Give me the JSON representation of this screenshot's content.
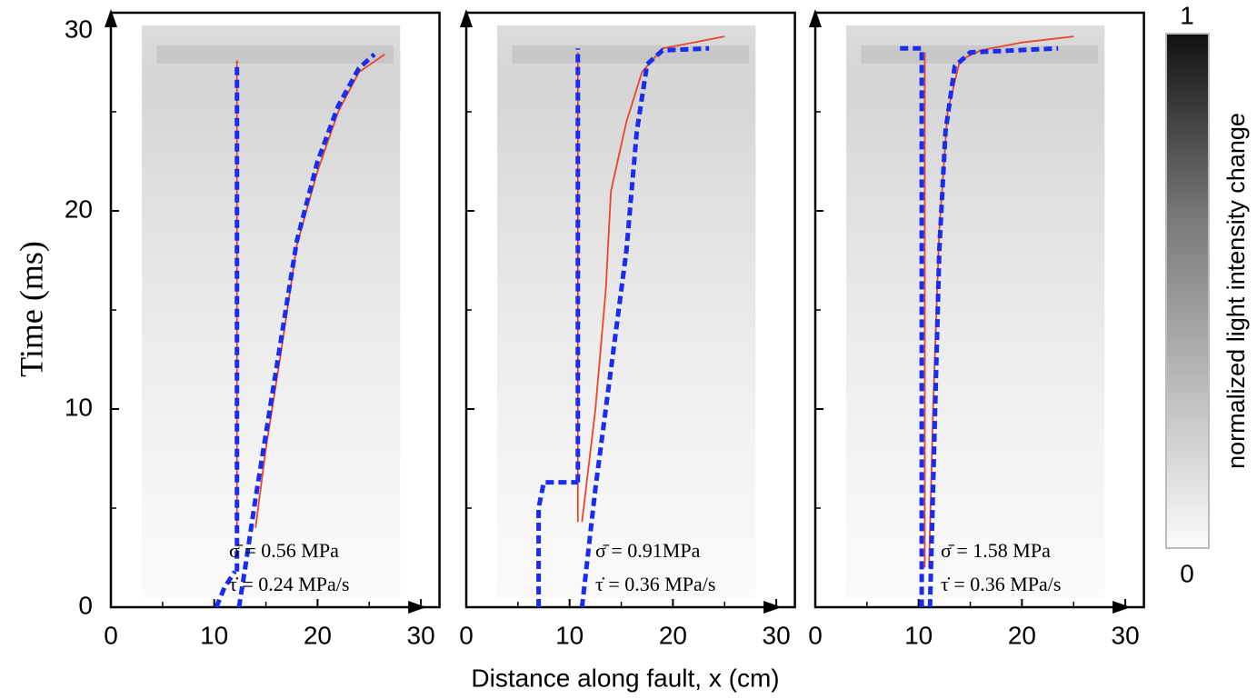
{
  "chart_data": [
    {
      "type": "line",
      "xlim": [
        0,
        31.8
      ],
      "ylim": [
        0,
        30
      ],
      "xticks": [
        0,
        10,
        20,
        30
      ],
      "yticks": [
        0,
        10,
        20,
        30
      ],
      "xminor": [
        5,
        15,
        25
      ],
      "yminor": [
        5,
        15,
        25
      ],
      "ytick_labels": true,
      "ylabel": "Time (ms)",
      "annotations": [
        "σ̄ = 0.56 MPa",
        "τ̇ = 0.24 MPa/s"
      ],
      "series": [
        {
          "color": "#e8452c",
          "style": "solid",
          "x": [
            12.2,
            12.2
          ],
          "values": [
            4,
            27.6
          ]
        },
        {
          "color": "#e8452c",
          "style": "solid",
          "x": [
            14,
            15,
            16.5,
            18,
            20,
            22,
            24,
            26.5
          ],
          "values": [
            4,
            8,
            13,
            18.3,
            22,
            25,
            27,
            27.9
          ]
        },
        {
          "color": "#1a2cf0",
          "style": "dashed",
          "x": [
            10.2,
            11,
            12
          ],
          "values": [
            0,
            1,
            1.8
          ]
        },
        {
          "color": "#1a2cf0",
          "style": "dashed",
          "x": [
            12.2,
            12.2
          ],
          "values": [
            1.8,
            27.5
          ]
        },
        {
          "color": "#1a2cf0",
          "style": "dashed",
          "x": [
            12.4,
            13,
            14,
            16,
            18,
            20,
            22,
            24,
            25.5
          ],
          "values": [
            0,
            2,
            5.5,
            12,
            18.5,
            22.5,
            25.3,
            27.2,
            27.9
          ]
        }
      ]
    },
    {
      "type": "line",
      "xlim": [
        0,
        31.8
      ],
      "ylim": [
        0,
        30
      ],
      "xticks": [
        0,
        10,
        20,
        30
      ],
      "yticks": [
        0,
        10,
        20,
        30
      ],
      "xminor": [
        5,
        15,
        25
      ],
      "yminor": [
        5,
        15,
        25
      ],
      "ytick_labels": false,
      "xlabel": "Distance along fault, x (cm)",
      "annotations": [
        "σ̄ = 0.91MPa",
        "τ̇ = 0.36 MPa/s"
      ],
      "series": [
        {
          "color": "#e8452c",
          "style": "solid",
          "x": [
            10.8,
            10.8
          ],
          "values": [
            4.3,
            28
          ]
        },
        {
          "color": "#e8452c",
          "style": "solid",
          "x": [
            11.2,
            12.5,
            13.5,
            14,
            15.5,
            17,
            19,
            22,
            25
          ],
          "values": [
            4.3,
            10,
            16,
            21,
            24.5,
            27,
            28.2,
            28.5,
            28.8
          ]
        },
        {
          "color": "#1a2cf0",
          "style": "dashed",
          "x": [
            7,
            7,
            7.5,
            10.8
          ],
          "values": [
            0,
            5,
            6.3,
            6.3
          ]
        },
        {
          "color": "#1a2cf0",
          "style": "dashed",
          "x": [
            10.8,
            10.8
          ],
          "values": [
            6.3,
            28.2
          ]
        },
        {
          "color": "#1a2cf0",
          "style": "dashed",
          "x": [
            11.2,
            12.5,
            14,
            15.5,
            16.5,
            17.5,
            19,
            23.5
          ],
          "values": [
            0,
            6,
            12,
            18,
            24,
            27.4,
            28.1,
            28.2
          ]
        }
      ]
    },
    {
      "type": "line",
      "xlim": [
        0,
        31.8
      ],
      "ylim": [
        0,
        30
      ],
      "xticks": [
        0,
        10,
        20,
        30
      ],
      "yticks": [
        0,
        10,
        20,
        30
      ],
      "xminor": [
        5,
        15,
        25
      ],
      "yminor": [
        5,
        15,
        25
      ],
      "ytick_labels": false,
      "annotations": [
        "σ̄ = 1.58 MPa",
        "τ̇ = 0.36 MPa/s"
      ],
      "colorbar": {
        "label": "normalized light intensity change",
        "ticks": [
          0,
          1
        ]
      },
      "series": [
        {
          "color": "#e8452c",
          "style": "solid",
          "x": [
            10.6,
            10.6
          ],
          "values": [
            2,
            28
          ]
        },
        {
          "color": "#e8452c",
          "style": "solid",
          "x": [
            11,
            11.4,
            12,
            12.8,
            14,
            16,
            20,
            25
          ],
          "values": [
            2,
            10,
            19,
            25,
            27.6,
            28.1,
            28.5,
            28.8
          ]
        },
        {
          "color": "#1a2cf0",
          "style": "dashed",
          "x": [
            8.2,
            10.3,
            10.3
          ],
          "values": [
            28.2,
            28.2,
            0
          ]
        },
        {
          "color": "#1a2cf0",
          "style": "dashed",
          "x": [
            11.1,
            11.5,
            12,
            12.6,
            13.5,
            15,
            23.5
          ],
          "values": [
            0,
            8,
            18,
            24,
            27.3,
            28,
            28.2
          ]
        }
      ]
    }
  ]
}
